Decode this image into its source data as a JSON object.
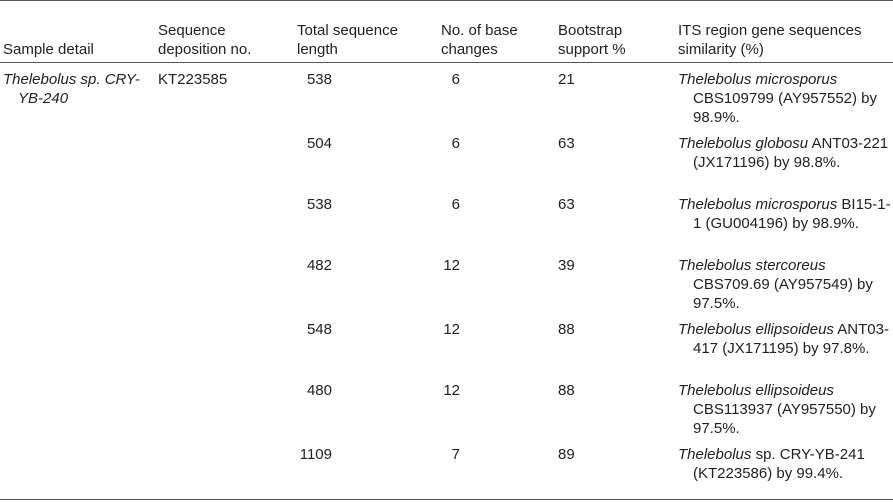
{
  "table": {
    "headers": [
      "Sample detail",
      "Sequence deposition no.",
      "Total sequence length",
      "No. of base changes",
      "Bootstrap support %",
      "ITS region gene sequences similarity (%)"
    ],
    "sample": "Thelebolus sp. CRY-YB-240",
    "deposition": "KT223585",
    "rows": [
      {
        "length": 538,
        "changes": 6,
        "bootstrap": 21,
        "species": "Thelebolus microsporus",
        "match": "CBS109799 (AY957552) by 98.9%."
      },
      {
        "length": 504,
        "changes": 6,
        "bootstrap": 63,
        "species": "Thelebolus globosu",
        "match": "ANT03-221 (JX171196) by 98.8%."
      },
      {
        "length": 538,
        "changes": 6,
        "bootstrap": 63,
        "species": "Thelebolus microsporus",
        "match": "BI15-1-1 (GU004196) by 98.9%."
      },
      {
        "length": 482,
        "changes": 12,
        "bootstrap": 39,
        "species": "Thelebolus stercoreus",
        "match": "CBS709.69 (AY957549) by 97.5%."
      },
      {
        "length": 548,
        "changes": 12,
        "bootstrap": 88,
        "species": "Thelebolus ellipsoideus",
        "match": "ANT03-417 (JX171195) by 97.8%."
      },
      {
        "length": 480,
        "changes": 12,
        "bootstrap": 88,
        "species": "Thelebolus ellipsoideus",
        "match": "CBS113937 (AY957550) by 97.5%."
      },
      {
        "length": 1109,
        "changes": 7,
        "bootstrap": 89,
        "species": "Thelebolus",
        "match": "sp. CRY-YB-241 (KT223586) by 99.4%."
      }
    ]
  }
}
